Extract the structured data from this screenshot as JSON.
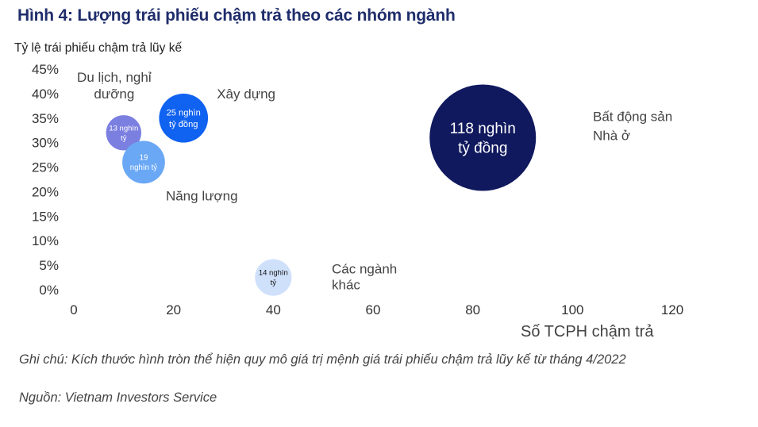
{
  "chart_data": {
    "type": "scatter",
    "title": "Hình 4: Lượng trái phiếu chậm trả theo các nhóm ngành",
    "ylabel": "Tỷ lệ trái phiếu chậm trả lũy kế",
    "xlabel": "Số TCPH chậm trả",
    "xlim": [
      0,
      120
    ],
    "ylim": [
      0,
      45
    ],
    "xticks": [
      "0",
      "20",
      "40",
      "60",
      "80",
      "100",
      "120"
    ],
    "yticks": [
      "0%",
      "5%",
      "10%",
      "15%",
      "20%",
      "25%",
      "30%",
      "35%",
      "40%",
      "45%"
    ],
    "grid": false,
    "points": [
      {
        "name": [
          "Du lịch, nghỉ",
          "dưỡng"
        ],
        "x": 10,
        "y": 32,
        "size": 13,
        "bubble_text": [
          "13 nghìn",
          "tỷ"
        ],
        "color": "#7b7fe0",
        "text_color": "#ffffff"
      },
      {
        "name": [
          "Xây dựng"
        ],
        "x": 22,
        "y": 35,
        "size": 25,
        "bubble_text": [
          "25 nghìn",
          "tỷ đồng"
        ],
        "color": "#1062f0",
        "text_color": "#ffffff"
      },
      {
        "name": [
          "Năng lượng"
        ],
        "x": 14,
        "y": 26,
        "size": 19,
        "bubble_text": [
          "19",
          "nghìn tỷ"
        ],
        "color": "#6aa8f5",
        "text_color": "#ffffff"
      },
      {
        "name": [
          "Các ngành",
          "khác"
        ],
        "x": 40,
        "y": 2.5,
        "size": 14,
        "bubble_text": [
          "14 nghìn",
          "tỷ"
        ],
        "color": "#cfe0fb",
        "text_color": "#111111"
      },
      {
        "name": [
          "Bất động sản",
          "Nhà ở"
        ],
        "x": 82,
        "y": 31,
        "size": 118,
        "bubble_text": [
          "118 nghìn",
          "tỷ đồng"
        ],
        "color": "#10195e",
        "text_color": "#ffffff"
      }
    ]
  },
  "note": "Ghi chú: Kích thước hình tròn thể hiện quy mô giá trị mệnh giá trái phiếu chậm trả lũy kế từ tháng 4/2022",
  "source": "Nguồn: Vietnam Investors Service"
}
